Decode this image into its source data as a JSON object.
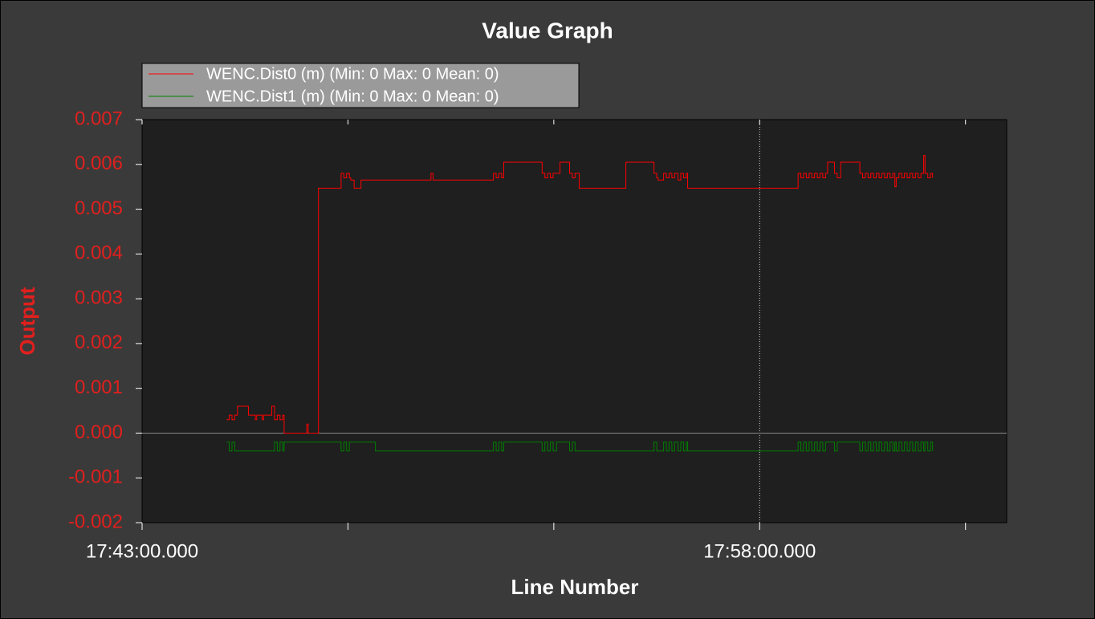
{
  "chart_data": {
    "type": "line",
    "title": "Value Graph",
    "xlabel": "Line Number",
    "ylabel": "Output",
    "drawstyle": "steps-post",
    "legend": "upper left",
    "xlim": [
      "17:43:00.000",
      "18:04:00.000"
    ],
    "xticks": [
      "17:43:00.000",
      {
        "value": "17:48:00.000",
        "label": null
      },
      {
        "value": "17:53:00.000",
        "label": null
      },
      "17:58:00.000",
      {
        "value": "18:03:00.000",
        "label": null
      }
    ],
    "ylim": [
      -0.002,
      0.007
    ],
    "yticks": [
      -0.002,
      -0.001,
      {
        "value": 0,
        "label": "0.000"
      },
      0.001,
      0.002,
      0.003,
      0.004,
      0.005,
      0.006,
      0.007
    ],
    "vlines": [
      "17:58:00.000"
    ],
    "hlines": [
      0
    ],
    "x": [
      "17:45:03",
      "17:45:07",
      "17:45:11",
      "17:45:15",
      "17:45:19",
      "17:45:35",
      "17:45:45",
      "17:45:47",
      "17:45:55",
      "17:45:57",
      "17:46:09",
      "17:46:13",
      "17:46:17",
      "17:46:21",
      "17:46:25",
      "17:46:27",
      "17:47:00",
      "17:47:02",
      "17:47:17",
      "17:47:50",
      "17:47:54",
      "17:47:58",
      "17:48:02",
      "17:48:04",
      "17:48:09",
      "17:48:19",
      "17:48:40",
      "17:50:01",
      "17:50:04",
      "17:51:32",
      "17:51:36",
      "17:51:40",
      "17:51:44",
      "17:51:47",
      "17:52:43",
      "17:52:47",
      "17:52:51",
      "17:52:55",
      "17:52:59",
      "17:53:04",
      "17:53:09",
      "17:53:23",
      "17:53:27",
      "17:53:31",
      "17:53:37",
      "17:54:45",
      "17:55:26",
      "17:55:30",
      "17:55:32",
      "17:55:40",
      "17:55:44",
      "17:55:48",
      "17:55:52",
      "17:55:56",
      "17:56:01",
      "17:56:05",
      "17:56:09",
      "17:56:13",
      "17:56:15",
      "17:58:56",
      "17:59:00",
      "17:59:04",
      "17:59:08",
      "17:59:12",
      "17:59:16",
      "17:59:20",
      "17:59:24",
      "17:59:28",
      "17:59:32",
      "17:59:36",
      "17:59:39",
      "17:59:49",
      "17:59:53",
      "17:59:58",
      "18:00:26",
      "18:00:30",
      "18:00:34",
      "18:00:38",
      "18:00:42",
      "18:00:46",
      "18:00:50",
      "18:00:54",
      "18:00:58",
      "18:01:02",
      "18:01:06",
      "18:01:10",
      "18:01:14",
      "18:01:17",
      "18:01:19",
      "18:01:23",
      "18:01:27",
      "18:01:31",
      "18:01:35",
      "18:01:39",
      "18:01:43",
      "18:01:47",
      "18:01:51",
      "18:01:55",
      "18:01:59",
      "18:02:01",
      "18:02:05",
      "18:02:09",
      "18:02:12"
    ],
    "series": [
      {
        "name": "WENC.Dist0 (m) (Min: 0 Max: 0 Mean: 0)",
        "color": "#ff0000",
        "values": [
          0.0003,
          0.0004,
          0.0003,
          0.0004,
          0.0006,
          0.0004,
          0.0003,
          0.0004,
          0.0003,
          0.0004,
          0.0006,
          0.0003,
          0.0004,
          0.0003,
          0.0004,
          0,
          0.0002,
          0,
          0.00547,
          0.0058,
          0.0057,
          0.0058,
          0.0057,
          0.00565,
          0.00547,
          0.00565,
          0.00565,
          0.0058,
          0.00565,
          0.0058,
          0.0057,
          0.0058,
          0.0057,
          0.00605,
          0.0058,
          0.0057,
          0.0058,
          0.0057,
          0.0058,
          0.0058,
          0.00605,
          0.0058,
          0.0057,
          0.0058,
          0.00547,
          0.00605,
          0.0058,
          0.0057,
          0.00565,
          0.0058,
          0.0057,
          0.0058,
          0.0057,
          0.0058,
          0.00565,
          0.0058,
          0.0057,
          0.0058,
          0.00547,
          0.0058,
          0.0057,
          0.0058,
          0.0057,
          0.0058,
          0.0057,
          0.0058,
          0.0057,
          0.0058,
          0.0057,
          0.0058,
          0.00605,
          0.0058,
          0.0057,
          0.00605,
          0.0058,
          0.0057,
          0.0058,
          0.0057,
          0.0058,
          0.0057,
          0.0058,
          0.0057,
          0.0058,
          0.0057,
          0.0058,
          0.0057,
          0.0058,
          0.0055,
          0.0057,
          0.0058,
          0.0057,
          0.0058,
          0.0057,
          0.0058,
          0.0057,
          0.0058,
          0.0057,
          0.0058,
          0.0062,
          0.0058,
          0.0057,
          0.0058,
          0.0057
        ]
      },
      {
        "name": "WENC.Dist1 (m) (Min: 0 Max: 0 Mean: 0)",
        "color": "#008000",
        "values": [
          -0.0002,
          -0.0004,
          -0.0002,
          -0.0004,
          -0.0004,
          -0.0004,
          -0.0004,
          -0.0004,
          -0.0004,
          -0.0004,
          -0.0004,
          -0.0002,
          -0.0004,
          -0.0002,
          -0.0004,
          -0.0002,
          -0.0002,
          -0.0002,
          -0.0002,
          -0.0004,
          -0.0002,
          -0.0004,
          -0.0002,
          -0.0002,
          -0.0002,
          -0.0002,
          -0.0004,
          -0.0004,
          -0.0004,
          -0.0002,
          -0.0004,
          -0.0002,
          -0.0004,
          -0.0002,
          -0.0004,
          -0.0002,
          -0.0004,
          -0.0002,
          -0.0004,
          -0.0002,
          -0.0002,
          -0.0004,
          -0.0002,
          -0.0004,
          -0.0004,
          -0.0004,
          -0.0002,
          -0.0004,
          -0.0004,
          -0.0002,
          -0.0004,
          -0.0002,
          -0.0004,
          -0.0002,
          -0.0004,
          -0.0002,
          -0.0004,
          -0.0002,
          -0.0004,
          -0.0002,
          -0.0004,
          -0.0002,
          -0.0004,
          -0.0002,
          -0.0004,
          -0.0002,
          -0.0004,
          -0.0002,
          -0.0004,
          -0.0002,
          -0.0002,
          -0.0004,
          -0.0002,
          -0.0002,
          -0.0004,
          -0.0002,
          -0.0004,
          -0.0002,
          -0.0004,
          -0.0002,
          -0.0004,
          -0.0002,
          -0.0004,
          -0.0002,
          -0.0004,
          -0.0002,
          -0.0004,
          -0.0002,
          -0.0004,
          -0.0002,
          -0.0004,
          -0.0002,
          -0.0004,
          -0.0002,
          -0.0004,
          -0.0002,
          -0.0004,
          -0.0002,
          -0.0004,
          -0.0002,
          -0.0004,
          -0.0002,
          -0.0004
        ]
      }
    ]
  }
}
